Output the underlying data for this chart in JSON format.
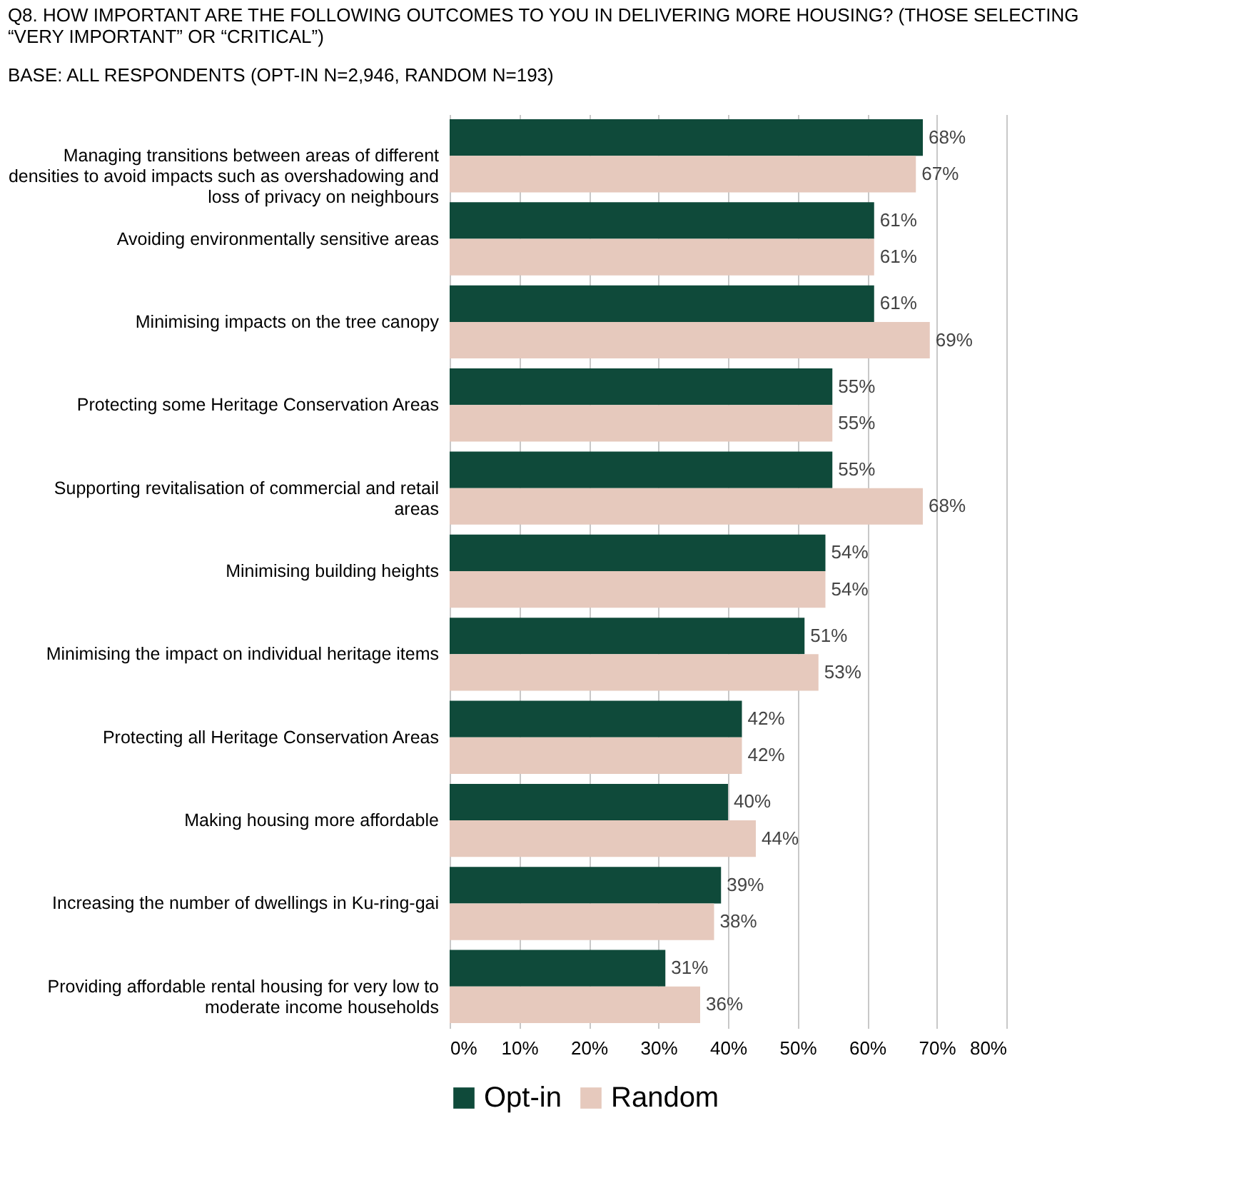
{
  "chart_data": {
    "type": "bar",
    "orientation": "horizontal",
    "title": "Q8. HOW IMPORTANT ARE THE FOLLOWING OUTCOMES TO YOU IN DELIVERING MORE HOUSING? (THOSE SELECTING “VERY IMPORTANT” OR “CRITICAL”)",
    "subtitle": "BASE: ALL RESPONDENTS (OPT-IN N=2,946, RANDOM N=193)",
    "categories": [
      "Managing transitions between areas of different densities to avoid impacts such as overshadowing and loss of privacy on neighbours",
      "Avoiding environmentally sensitive areas",
      "Minimising impacts on the tree canopy",
      "Protecting some Heritage Conservation Areas",
      "Supporting revitalisation of commercial and retail areas",
      "Minimising building heights",
      "Minimising the impact on individual heritage items",
      "Protecting all Heritage Conservation Areas",
      "Making housing more affordable",
      "Increasing the number of dwellings in Ku-ring-gai",
      "Providing affordable rental housing for very low to moderate income households"
    ],
    "series": [
      {
        "name": "Opt-in",
        "color": "#0f4a3a",
        "values": [
          68,
          61,
          61,
          55,
          55,
          54,
          51,
          42,
          40,
          39,
          31
        ],
        "value_labels": [
          "68%",
          "61%",
          "61%",
          "55%",
          "55%",
          "54%",
          "51%",
          "42%",
          "40%",
          "39%",
          "31%"
        ]
      },
      {
        "name": "Random",
        "color": "#e6c9bd",
        "values": [
          67,
          61,
          69,
          55,
          68,
          54,
          53,
          42,
          44,
          38,
          36
        ],
        "value_labels": [
          "67%",
          "61%",
          "69%",
          "55%",
          "68%",
          "54%",
          "53%",
          "42%",
          "44%",
          "38%",
          "36%"
        ]
      }
    ],
    "xlim": [
      0,
      80
    ],
    "xticks": [
      {
        "value": 0,
        "label": "0%"
      },
      {
        "value": 10,
        "label": "10%"
      },
      {
        "value": 20,
        "label": "20%"
      },
      {
        "value": 30,
        "label": "30%"
      },
      {
        "value": 40,
        "label": "40%"
      },
      {
        "value": 50,
        "label": "50%"
      },
      {
        "value": 60,
        "label": "60%"
      },
      {
        "value": 70,
        "label": "70%"
      },
      {
        "value": 80,
        "label": "80%"
      }
    ],
    "grid": "x",
    "legend": "bottom"
  }
}
